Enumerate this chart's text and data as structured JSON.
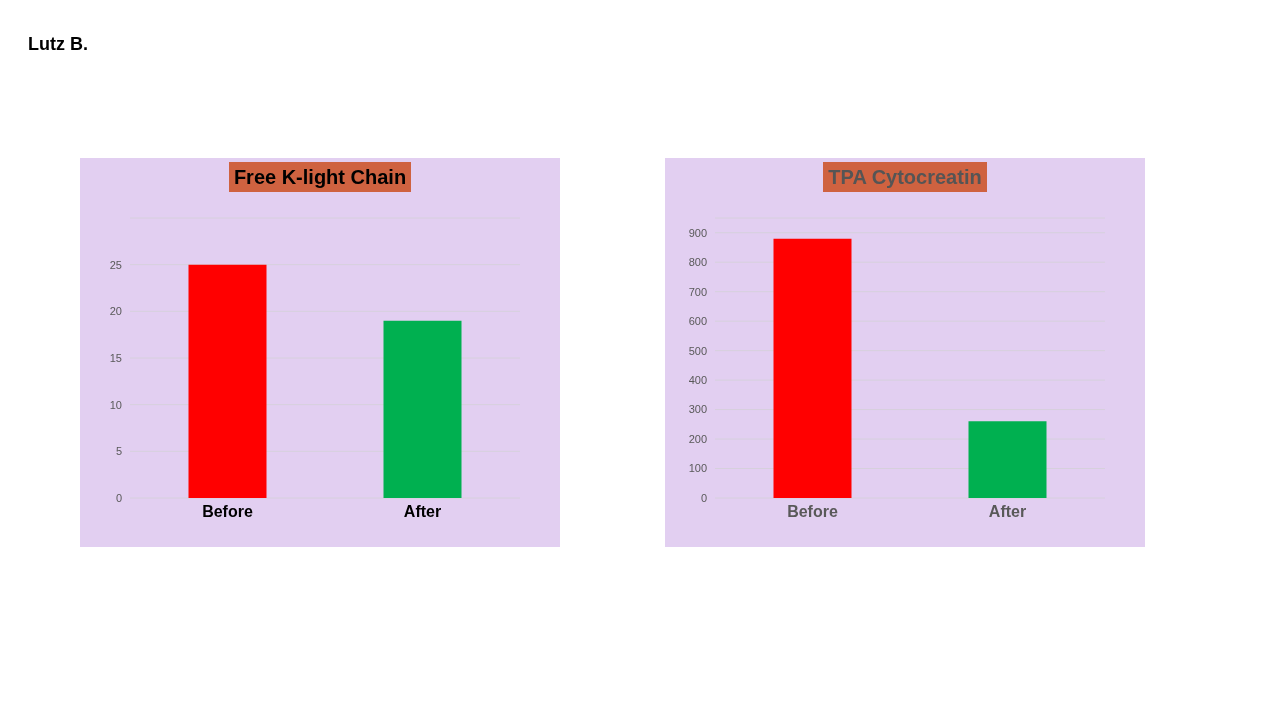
{
  "chart_data": [
    {
      "type": "bar",
      "title": "Free K-light Chain",
      "categories": [
        "Before",
        "After"
      ],
      "values": [
        25,
        19
      ],
      "colors": [
        "#ff0000",
        "#00b050"
      ],
      "ylim": [
        0,
        30
      ],
      "yticks": [
        0,
        5,
        10,
        15,
        20,
        25
      ],
      "grid": "y",
      "annotations": [
        "Lutz B."
      ]
    },
    {
      "type": "bar",
      "title": "TPA Cytocreatin",
      "categories": [
        "Before",
        "After"
      ],
      "values": [
        880,
        260
      ],
      "colors": [
        "#ff0000",
        "#00b050"
      ],
      "ylim": [
        0,
        950
      ],
      "yticks": [
        0,
        100,
        200,
        300,
        400,
        500,
        600,
        700,
        800,
        900
      ],
      "grid": "y"
    }
  ]
}
